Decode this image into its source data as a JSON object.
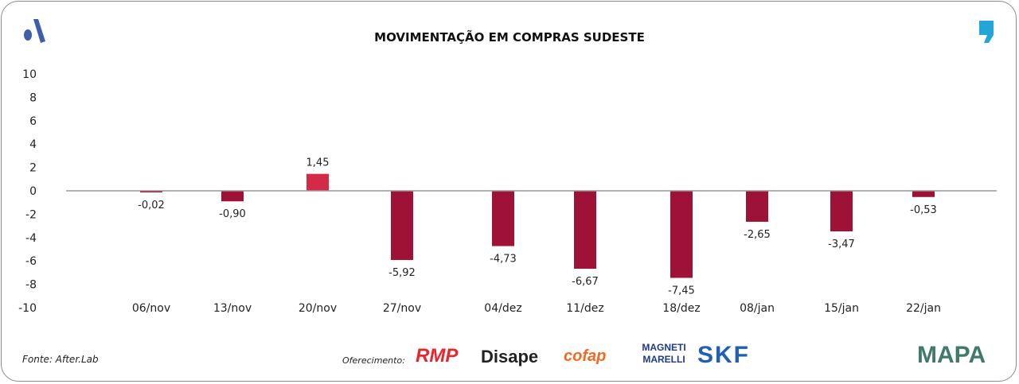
{
  "chart_data": {
    "type": "bar",
    "title": "MOVIMENTAÇÃO EM COMPRAS SUDESTE",
    "categories": [
      "06/nov",
      "13/nov",
      "20/nov",
      "27/nov",
      "04/dez",
      "11/dez",
      "18/dez",
      "08/jan",
      "15/jan",
      "22/jan"
    ],
    "values": [
      -0.02,
      -0.9,
      1.45,
      -5.92,
      -4.73,
      -6.67,
      -7.45,
      -2.65,
      -3.47,
      -0.53
    ],
    "labels": [
      "-0,02",
      "-0,90",
      "1,45",
      "-5,92",
      "-4,73",
      "-6,67",
      "-7,45",
      "-2,65",
      "-3,47",
      "-0,53"
    ],
    "ylim": [
      -10,
      10
    ],
    "yticks": [
      10,
      8,
      6,
      4,
      2,
      0,
      -2,
      -4,
      -6,
      -8,
      -10
    ],
    "grid": false,
    "colors": {
      "positive": "#d42a45",
      "negative": "#9e1238"
    }
  },
  "footer": {
    "source": "Fonte: After.Lab",
    "offered": "Oferecimento:",
    "sponsors": [
      "RMP",
      "Disape",
      "cofap",
      "MAGNETI MARELLI",
      "SKF"
    ],
    "brand": "MAPA"
  }
}
